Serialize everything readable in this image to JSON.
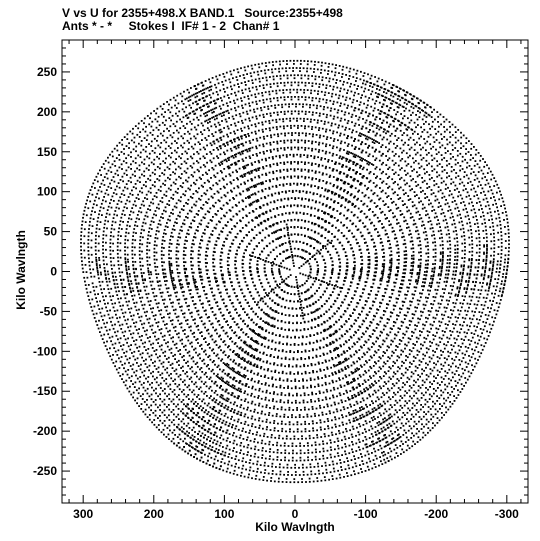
{
  "chart_data": {
    "type": "scatter",
    "title_line1": "V vs U for 2355+498.X BAND.1   Source:2355+498",
    "title_line2": "Ants * - *     Stokes I  IF# 1 - 2  Chan# 1",
    "xlabel": "Kilo Wavlngth",
    "ylabel": "Kilo Wavlngth",
    "xlim": [
      330,
      -330
    ],
    "ylim": [
      -290,
      290
    ],
    "x_reversed": true,
    "grid": false,
    "x_ticks": [
      300,
      200,
      100,
      0,
      -100,
      -200,
      -300
    ],
    "x_tick_labels": [
      "300",
      "200",
      "100",
      "0",
      "-100",
      "-200",
      "-300"
    ],
    "y_ticks": [
      250,
      200,
      150,
      100,
      50,
      0,
      -50,
      -100,
      -150,
      -200,
      -250
    ],
    "y_tick_labels": [
      "250",
      "200",
      "150",
      "100",
      "50",
      "0",
      "-50",
      "-100",
      "-150",
      "-200",
      "-250"
    ],
    "marker_color": "#000000",
    "series": [
      {
        "coverage": "uv-tracks",
        "num_baseline_arcs": 28,
        "arc_angular_ranges_deg": [
          [
            -5,
            65
          ],
          [
            60,
            125
          ],
          [
            115,
            185
          ],
          [
            175,
            245
          ],
          [
            240,
            305
          ],
          [
            295,
            360
          ]
        ],
        "max_radius": 300,
        "min_radius": 12
      }
    ]
  }
}
